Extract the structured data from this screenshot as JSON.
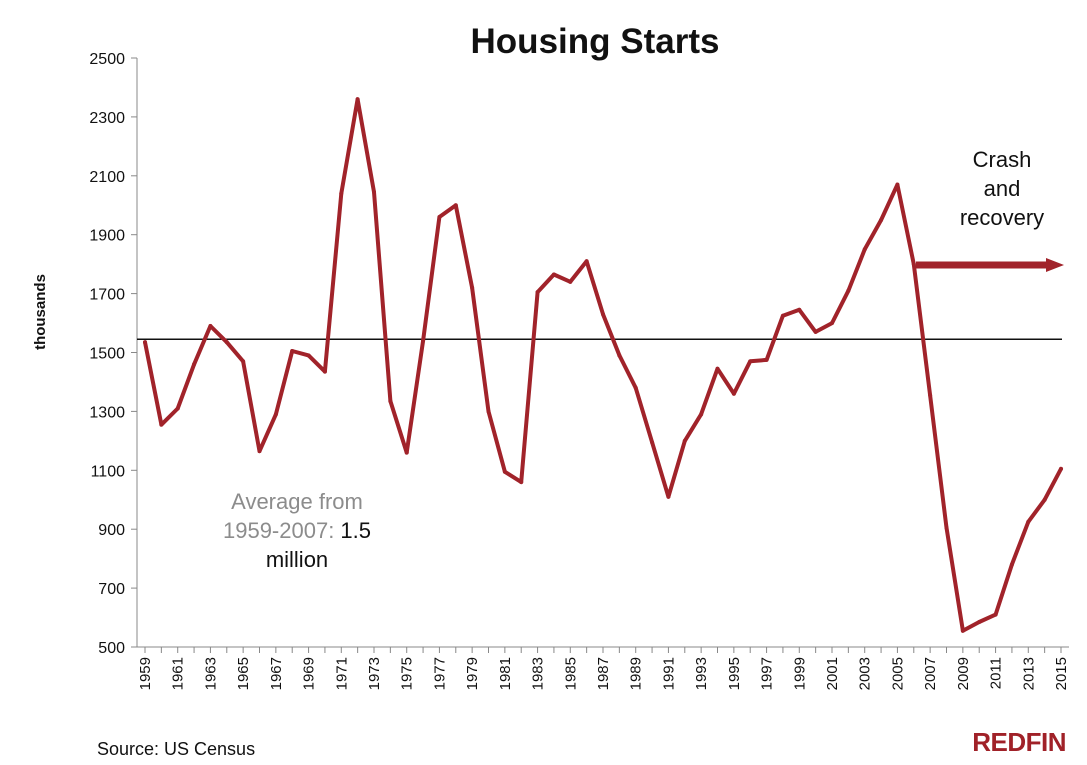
{
  "colors": {
    "line": "#a1232a",
    "arrow": "#a1232a",
    "average": "#111111",
    "annotation_gray": "#8c8c8c",
    "brand": "#a02128"
  },
  "chart_data": {
    "type": "line",
    "title": "Housing Starts",
    "ylabel": "thousands",
    "xlabel": "",
    "ylim": [
      500,
      2500
    ],
    "yticks": [
      "2500",
      "2300",
      "2100",
      "1900",
      "1700",
      "1500",
      "1300",
      "1100",
      "900",
      "700",
      "500"
    ],
    "xticks": [
      "1959",
      "1961",
      "1963",
      "1965",
      "1967",
      "1969",
      "1971",
      "1973",
      "1975",
      "1977",
      "1979",
      "1981",
      "1983",
      "1985",
      "1987",
      "1989",
      "1991",
      "1993",
      "1995",
      "1997",
      "1999",
      "2001",
      "2003",
      "2005",
      "2007",
      "2009",
      "2011",
      "2013",
      "2015"
    ],
    "x": [
      1959,
      1960,
      1961,
      1962,
      1963,
      1964,
      1965,
      1966,
      1967,
      1968,
      1969,
      1970,
      1971,
      1972,
      1973,
      1974,
      1975,
      1976,
      1977,
      1978,
      1979,
      1980,
      1981,
      1982,
      1983,
      1984,
      1985,
      1986,
      1987,
      1988,
      1989,
      1990,
      1991,
      1992,
      1993,
      1994,
      1995,
      1996,
      1997,
      1998,
      1999,
      2000,
      2001,
      2002,
      2003,
      2004,
      2005,
      2006,
      2007,
      2008,
      2009,
      2010,
      2011,
      2012,
      2013,
      2014,
      2015
    ],
    "series": [
      {
        "values": [
          1535,
          1255,
          1310,
          1460,
          1590,
          1535,
          1470,
          1165,
          1290,
          1505,
          1490,
          1435,
          2040,
          2360,
          2045,
          1335,
          1160,
          1540,
          1960,
          2000,
          1720,
          1300,
          1095,
          1060,
          1705,
          1765,
          1740,
          1810,
          1630,
          1490,
          1380,
          1195,
          1010,
          1200,
          1290,
          1445,
          1360,
          1470,
          1475,
          1625,
          1645,
          1570,
          1600,
          1710,
          1850,
          1950,
          2070,
          1800,
          1355,
          905,
          555,
          585,
          610,
          780,
          925,
          1000,
          1105
        ]
      }
    ],
    "average": {
      "value": 1545
    },
    "annotations": {
      "average_text_gray_1": "Average from",
      "average_text_gray_2": "1959-2007:",
      "average_text_dark_1": "1.5",
      "average_text_dark_2": "million",
      "crash_1": "Crash",
      "crash_2": "and",
      "crash_3": "recovery"
    },
    "grid": false,
    "legend": "none"
  },
  "footer": {
    "source": "Source: US Census",
    "brand": "REDFIN"
  }
}
